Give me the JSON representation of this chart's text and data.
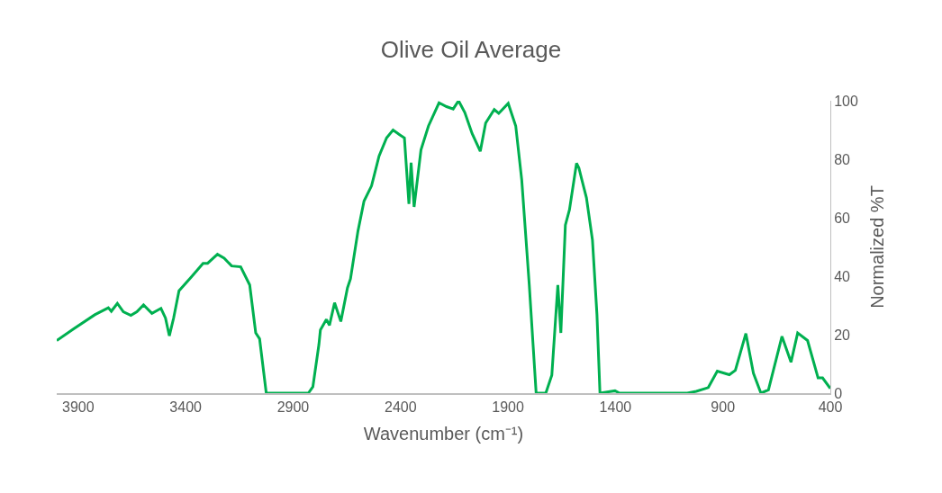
{
  "chart_data": {
    "type": "line",
    "title": "Olive Oil Average",
    "xlabel": "Wavenumber (cm⁻¹)",
    "ylabel": "Normalized %T",
    "x": [
      4000,
      3921,
      3823,
      3760,
      3746,
      3718,
      3690,
      3655,
      3627,
      3596,
      3557,
      3515,
      3494,
      3476,
      3456,
      3431,
      3375,
      3319,
      3298,
      3252,
      3221,
      3186,
      3144,
      3102,
      3074,
      3056,
      3025,
      2829,
      2808,
      2780,
      2773,
      2745,
      2731,
      2707,
      2678,
      2647,
      2633,
      2598,
      2570,
      2535,
      2500,
      2465,
      2435,
      2403,
      2382,
      2361,
      2351,
      2337,
      2305,
      2270,
      2221,
      2186,
      2155,
      2130,
      2101,
      2067,
      2029,
      2004,
      1964,
      1943,
      1899,
      1864,
      1836,
      1801,
      1769,
      1724,
      1696,
      1668,
      1654,
      1633,
      1614,
      1581,
      1570,
      1556,
      1535,
      1507,
      1486,
      1472,
      1402,
      1381,
      1066,
      1024,
      968,
      926,
      870,
      842,
      793,
      758,
      723,
      688,
      625,
      583,
      552,
      506,
      457,
      436,
      400
    ],
    "series": [
      {
        "color": "#00b050",
        "values": [
          18,
          22,
          26.8,
          29.2,
          28,
          30.7,
          27.8,
          26.6,
          27.8,
          30.2,
          27.3,
          29,
          25.7,
          19.6,
          25.7,
          35,
          39.6,
          44.4,
          44.4,
          47.5,
          46.2,
          43.5,
          43.2,
          37,
          20.6,
          18.6,
          0,
          0,
          2.2,
          16.6,
          21.6,
          25.2,
          23.2,
          30.9,
          24.5,
          36,
          39.1,
          55.5,
          65.7,
          70.9,
          81.1,
          87.3,
          90,
          88.3,
          87.3,
          64.7,
          78.8,
          63.7,
          83.2,
          91.4,
          99.3,
          98,
          97.2,
          100,
          96,
          88.8,
          82.7,
          92.4,
          97,
          95.7,
          99.1,
          91.4,
          72.9,
          37,
          0,
          0,
          6.2,
          37,
          20.6,
          57.5,
          62.7,
          78.6,
          77,
          72.9,
          66.8,
          52.4,
          26.8,
          0,
          0.8,
          0,
          0,
          0.6,
          1.9,
          7.5,
          6.3,
          7.8,
          20.4,
          6.8,
          0,
          1.1,
          19.4,
          10.6,
          20.6,
          18,
          5.2,
          5.2,
          1.6
        ]
      }
    ],
    "xlim": [
      4000,
      400
    ],
    "xticks": [
      3900,
      3400,
      2900,
      2400,
      1900,
      1400,
      900,
      400
    ],
    "ylim": [
      0,
      100
    ],
    "yticks": [
      0,
      20,
      40,
      60,
      80,
      100
    ],
    "marker": "none",
    "line_style": "solid"
  }
}
